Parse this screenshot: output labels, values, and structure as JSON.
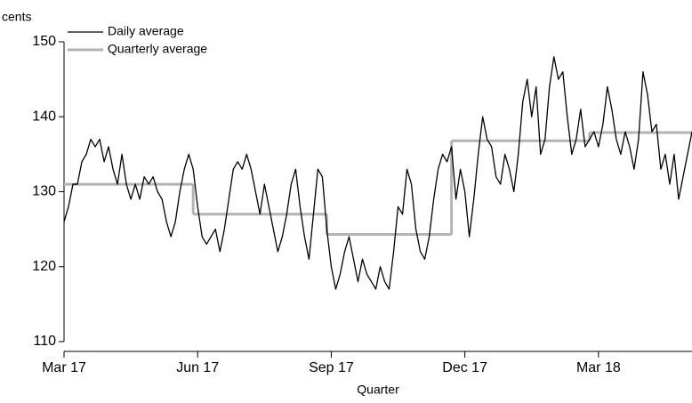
{
  "chart_data": {
    "type": "line",
    "y_label": "cents",
    "x_label": "Quarter",
    "xlim": [
      0,
      14.1
    ],
    "xticks": [
      {
        "value": 0,
        "label": "Mar 17"
      },
      {
        "value": 3,
        "label": "Jun 17"
      },
      {
        "value": 6,
        "label": "Sep 17"
      },
      {
        "value": 9,
        "label": "Dec 17"
      },
      {
        "value": 12,
        "label": "Mar 18"
      }
    ],
    "ylim": [
      110,
      150
    ],
    "yticks": [
      110,
      120,
      130,
      140,
      150
    ],
    "grid": false,
    "legend": "top-left",
    "series": [
      {
        "name": "Daily average",
        "color": "#000000",
        "x": [
          0,
          0.1,
          0.2,
          0.3,
          0.4,
          0.5,
          0.6,
          0.7,
          0.8,
          0.9,
          1,
          1.1,
          1.2,
          1.3,
          1.4,
          1.5,
          1.6,
          1.7,
          1.8,
          1.9,
          2,
          2.1,
          2.2,
          2.3,
          2.4,
          2.5,
          2.6,
          2.7,
          2.8,
          2.9,
          3,
          3.1,
          3.2,
          3.3,
          3.4,
          3.5,
          3.6,
          3.7,
          3.8,
          3.9,
          4,
          4.1,
          4.2,
          4.3,
          4.4,
          4.5,
          4.6,
          4.7,
          4.8,
          4.9,
          5,
          5.1,
          5.2,
          5.3,
          5.4,
          5.5,
          5.6,
          5.7,
          5.8,
          5.9,
          6,
          6.1,
          6.2,
          6.3,
          6.4,
          6.5,
          6.6,
          6.7,
          6.8,
          6.9,
          7,
          7.1,
          7.2,
          7.3,
          7.4,
          7.5,
          7.6,
          7.7,
          7.8,
          7.9,
          8,
          8.1,
          8.2,
          8.3,
          8.4,
          8.5,
          8.6,
          8.7,
          8.8,
          8.9,
          9,
          9.1,
          9.2,
          9.3,
          9.4,
          9.5,
          9.6,
          9.7,
          9.8,
          9.9,
          10,
          10.1,
          10.2,
          10.3,
          10.4,
          10.5,
          10.6,
          10.7,
          10.8,
          10.9,
          11,
          11.1,
          11.2,
          11.3,
          11.4,
          11.5,
          11.6,
          11.7,
          11.8,
          11.9,
          12,
          12.1,
          12.2,
          12.3,
          12.4,
          12.5,
          12.6,
          12.7,
          12.8,
          12.9,
          13,
          13.1,
          13.2,
          13.3,
          13.4,
          13.5,
          13.6,
          13.7,
          13.8,
          13.9,
          14,
          14.1
        ],
        "values": [
          126,
          128,
          131,
          131,
          134,
          135,
          137,
          136,
          137,
          134,
          136,
          133,
          131,
          135,
          131,
          129,
          131,
          129,
          132,
          131,
          132,
          130,
          129,
          126,
          124,
          126,
          130,
          133,
          135,
          133,
          128,
          124,
          123,
          124,
          125,
          122,
          125,
          129,
          133,
          134,
          133,
          135,
          133,
          130,
          127,
          131,
          128,
          125,
          122,
          124,
          127,
          131,
          133,
          128,
          124,
          121,
          127,
          133,
          132,
          125,
          120,
          117,
          119,
          122,
          124,
          121,
          118,
          121,
          119,
          118,
          117,
          120,
          118,
          117,
          122,
          128,
          127,
          133,
          131,
          125,
          122,
          121,
          124,
          129,
          133,
          135,
          134,
          136,
          129,
          133,
          130,
          124,
          129,
          135,
          140,
          137,
          136,
          132,
          131,
          135,
          133,
          130,
          135,
          142,
          145,
          140,
          144,
          135,
          137,
          144,
          148,
          145,
          146,
          140,
          135,
          137,
          141,
          136,
          137,
          138,
          136,
          139,
          144,
          141,
          137,
          135,
          138,
          136,
          133,
          137,
          146,
          143,
          138,
          139,
          133,
          135,
          131,
          135,
          129,
          132,
          135,
          138
        ]
      },
      {
        "name": "Quarterly average",
        "color": "#b3b3b3",
        "step": true,
        "x": [
          0,
          2.9,
          5.9,
          8.7,
          11.8
        ],
        "values": [
          131,
          127,
          124.3,
          136.8,
          137.9
        ]
      }
    ]
  }
}
